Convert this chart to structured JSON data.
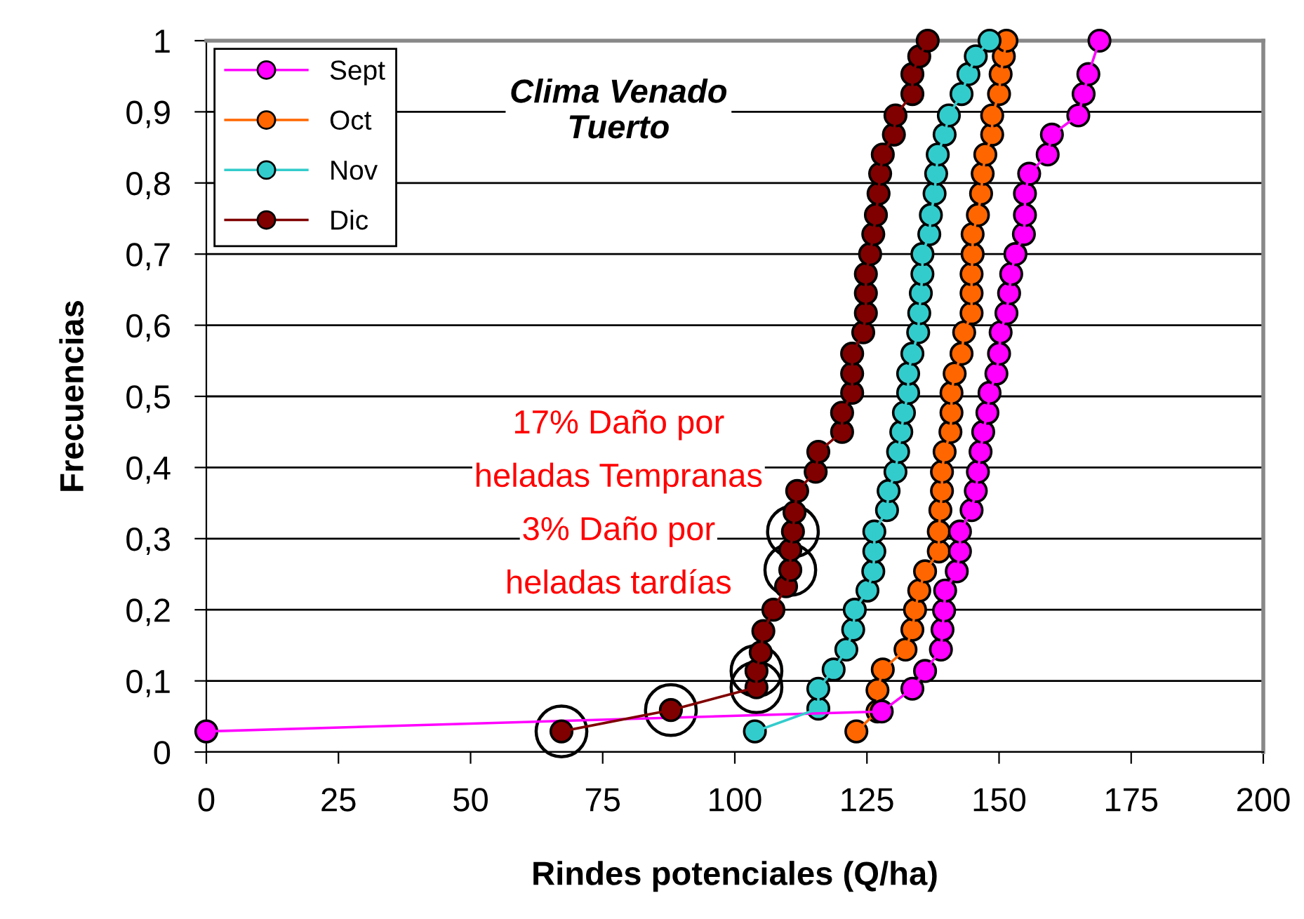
{
  "chart_data": {
    "type": "line",
    "title": "Clima Venado Tuerto",
    "xlabel": "Rindes potenciales (Q/ha)",
    "ylabel": "Frecuencias",
    "xlim": [
      0,
      200
    ],
    "xticks": [
      0,
      25,
      50,
      75,
      100,
      125,
      150,
      175,
      200
    ],
    "ylim": [
      0,
      1
    ],
    "yticks": [
      0,
      {
        "value": 0.1,
        "label": "0,1"
      },
      {
        "value": 0.2,
        "label": "0,2"
      },
      {
        "value": 0.3,
        "label": "0,3"
      },
      {
        "value": 0.4,
        "label": "0,4"
      },
      {
        "value": 0.5,
        "label": "0,5"
      },
      {
        "value": 0.6,
        "label": "0,6"
      },
      {
        "value": 0.7,
        "label": "0,7"
      },
      {
        "value": 0.8,
        "label": "0,8"
      },
      {
        "value": 0.9,
        "label": "0,9"
      },
      1
    ],
    "grid": "y",
    "legend": "top left",
    "marker": "circle",
    "line_style": "solid",
    "annotations": [
      "17% Daño por",
      "heladas Tempranas",
      "3% Daño por",
      "heladas tardías"
    ],
    "series": [
      {
        "name": "Sept",
        "color": "#ff00ff",
        "x": [
          0,
          127.8,
          133.6,
          136,
          139,
          139.3,
          139.6,
          139.8,
          142,
          142.6,
          142.6,
          144.8,
          145.6,
          146,
          146.5,
          147,
          147.8,
          148.2,
          149.5,
          150,
          150.3,
          151.4,
          151.9,
          152.3,
          153.1,
          154.7,
          154.9,
          154.9,
          155.7,
          159.2,
          160,
          165,
          166,
          166.9,
          169
        ],
        "values": [
          0.029,
          0.057,
          0.089,
          0.114,
          0.144,
          0.172,
          0.199,
          0.227,
          0.254,
          0.282,
          0.31,
          0.34,
          0.367,
          0.394,
          0.422,
          0.45,
          0.477,
          0.505,
          0.532,
          0.56,
          0.59,
          0.617,
          0.645,
          0.672,
          0.7,
          0.728,
          0.755,
          0.785,
          0.813,
          0.84,
          0.868,
          0.895,
          0.925,
          0.953,
          1.0
        ]
      },
      {
        "name": "Oct",
        "color": "#ff6600",
        "x": [
          123,
          127,
          127,
          128,
          132.3,
          133.6,
          134.1,
          134.9,
          136,
          138.6,
          138.6,
          138.9,
          139.2,
          139.2,
          139.7,
          140.8,
          141,
          141,
          141.6,
          142.9,
          143.4,
          144.8,
          144.8,
          144.8,
          145,
          145,
          146,
          146.6,
          146.9,
          147.4,
          148.7,
          148.7,
          150,
          150.3,
          150.9,
          151.4
        ],
        "values": [
          0.029,
          0.057,
          0.087,
          0.116,
          0.144,
          0.172,
          0.2,
          0.227,
          0.254,
          0.282,
          0.31,
          0.34,
          0.367,
          0.394,
          0.422,
          0.45,
          0.477,
          0.505,
          0.532,
          0.56,
          0.59,
          0.617,
          0.645,
          0.672,
          0.7,
          0.728,
          0.755,
          0.785,
          0.813,
          0.84,
          0.868,
          0.895,
          0.925,
          0.953,
          0.978,
          1.0
        ]
      },
      {
        "name": "Nov",
        "color": "#33cccc",
        "x": [
          103.8,
          115.8,
          115.8,
          118.7,
          121.1,
          122.4,
          122.7,
          125.1,
          126.2,
          126.4,
          126.4,
          128.8,
          129.1,
          130.4,
          130.9,
          131.5,
          132,
          132.8,
          132.8,
          133.6,
          134.7,
          134.9,
          135.2,
          135.5,
          135.5,
          136.8,
          137.1,
          137.8,
          138.1,
          138.4,
          139.7,
          140.5,
          142.9,
          144.2,
          145.6,
          148.2
        ],
        "values": [
          0.029,
          0.061,
          0.089,
          0.116,
          0.144,
          0.172,
          0.2,
          0.227,
          0.254,
          0.282,
          0.31,
          0.34,
          0.367,
          0.394,
          0.422,
          0.45,
          0.477,
          0.505,
          0.532,
          0.56,
          0.59,
          0.617,
          0.645,
          0.672,
          0.7,
          0.728,
          0.755,
          0.785,
          0.813,
          0.84,
          0.868,
          0.895,
          0.925,
          0.953,
          0.978,
          1.0
        ]
      },
      {
        "name": "Dic",
        "color": "#800000",
        "x": [
          67.2,
          87.9,
          104.1,
          104.1,
          104.9,
          105.4,
          107.3,
          109.7,
          110.5,
          110.5,
          111,
          111.3,
          111.8,
          115.3,
          115.8,
          120.3,
          120.3,
          122.2,
          122.2,
          122.2,
          124.3,
          124.8,
          124.8,
          124.8,
          125.6,
          126.2,
          126.7,
          127.2,
          127.5,
          128,
          130.1,
          130.4,
          133.6,
          133.6,
          134.9,
          136.5
        ],
        "values": [
          0.029,
          0.059,
          0.091,
          0.114,
          0.14,
          0.17,
          0.2,
          0.233,
          0.256,
          0.284,
          0.31,
          0.337,
          0.367,
          0.394,
          0.422,
          0.45,
          0.477,
          0.505,
          0.532,
          0.56,
          0.59,
          0.617,
          0.645,
          0.672,
          0.7,
          0.728,
          0.755,
          0.785,
          0.813,
          0.84,
          0.868,
          0.895,
          0.925,
          0.953,
          0.978,
          1.0
        ]
      }
    ]
  }
}
